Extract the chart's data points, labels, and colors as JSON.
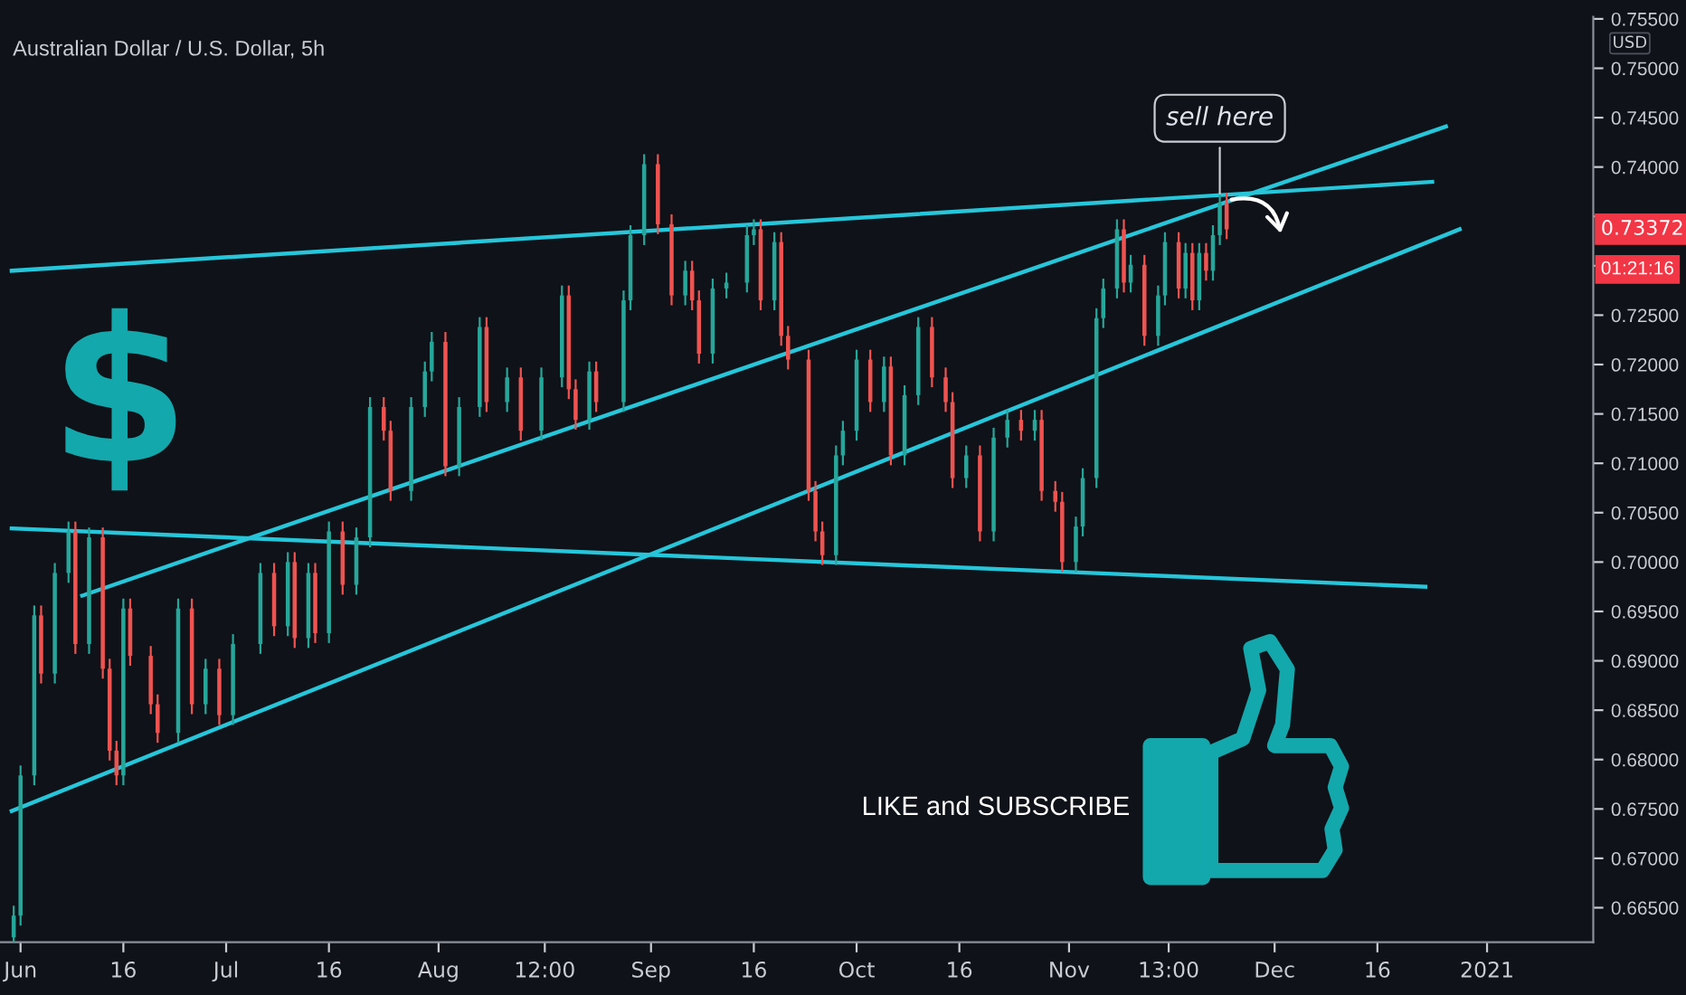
{
  "chart_data": {
    "type": "candlestick",
    "title": "Australian Dollar / U.S. Dollar, 5h",
    "ylabel": "USD",
    "x": [
      "2020-05-31",
      "2020-06-01",
      "2020-06-03",
      "2020-06-04",
      "2020-06-06",
      "2020-06-08",
      "2020-06-09",
      "2020-06-11",
      "2020-06-13",
      "2020-06-14",
      "2020-06-15",
      "2020-06-16",
      "2020-06-17",
      "2020-06-20",
      "2020-06-21",
      "2020-06-24",
      "2020-06-26",
      "2020-06-28",
      "2020-06-30",
      "2020-07-02",
      "2020-07-06",
      "2020-07-08",
      "2020-07-10",
      "2020-07-11",
      "2020-07-13",
      "2020-07-14",
      "2020-07-16",
      "2020-07-18",
      "2020-07-20",
      "2020-07-22",
      "2020-07-24",
      "2020-07-25",
      "2020-07-28",
      "2020-07-30",
      "2020-07-31",
      "2020-08-02",
      "2020-08-04",
      "2020-08-07",
      "2020-08-08",
      "2020-08-11",
      "2020-08-13",
      "2020-08-16",
      "2020-08-19",
      "2020-08-20",
      "2020-08-21",
      "2020-08-23",
      "2020-08-24",
      "2020-08-28",
      "2020-08-29",
      "2020-08-31",
      "2020-09-02",
      "2020-09-04",
      "2020-09-06",
      "2020-09-07",
      "2020-09-08",
      "2020-09-10",
      "2020-09-12",
      "2020-09-15",
      "2020-09-16",
      "2020-09-17",
      "2020-09-19",
      "2020-09-20",
      "2020-09-21",
      "2020-09-24",
      "2020-09-25",
      "2020-09-26",
      "2020-09-28",
      "2020-09-29",
      "2020-10-01",
      "2020-10-03",
      "2020-10-05",
      "2020-10-06",
      "2020-10-08",
      "2020-10-10",
      "2020-10-12",
      "2020-10-14",
      "2020-10-15",
      "2020-10-17",
      "2020-10-19",
      "2020-10-21",
      "2020-10-23",
      "2020-10-25",
      "2020-10-27",
      "2020-10-28",
      "2020-10-30",
      "2020-10-31",
      "2020-11-02",
      "2020-11-03",
      "2020-11-05",
      "2020-11-06",
      "2020-11-08",
      "2020-11-09",
      "2020-11-10",
      "2020-11-12",
      "2020-11-14",
      "2020-11-15",
      "2020-11-17",
      "2020-11-18",
      "2020-11-19",
      "2020-11-20",
      "2020-11-21",
      "2020-11-22",
      "2020-11-23",
      "2020-11-24"
    ],
    "ohlc": [
      [
        0.662,
        0.6652,
        0.661,
        0.6642
      ],
      [
        0.6642,
        0.6794,
        0.6632,
        0.6784
      ],
      [
        0.6784,
        0.6956,
        0.6774,
        0.6946
      ],
      [
        0.6946,
        0.6956,
        0.6877,
        0.6887
      ],
      [
        0.6887,
        0.6999,
        0.6877,
        0.6989
      ],
      [
        0.6989,
        0.7041,
        0.6979,
        0.7031
      ],
      [
        0.7031,
        0.7041,
        0.6907,
        0.6917
      ],
      [
        0.6917,
        0.7035,
        0.6907,
        0.7025
      ],
      [
        0.7025,
        0.7035,
        0.6882,
        0.6892
      ],
      [
        0.6892,
        0.6902,
        0.6799,
        0.6809
      ],
      [
        0.6809,
        0.6819,
        0.6774,
        0.6784
      ],
      [
        0.6784,
        0.6963,
        0.6774,
        0.6953
      ],
      [
        0.6953,
        0.6963,
        0.6895,
        0.6905
      ],
      [
        0.6905,
        0.6915,
        0.6846,
        0.6856
      ],
      [
        0.6856,
        0.6866,
        0.6817,
        0.6827
      ],
      [
        0.6827,
        0.6963,
        0.6817,
        0.6953
      ],
      [
        0.6953,
        0.6963,
        0.6846,
        0.6856
      ],
      [
        0.6856,
        0.6902,
        0.6846,
        0.6892
      ],
      [
        0.6892,
        0.6902,
        0.6835,
        0.6845
      ],
      [
        0.6845,
        0.6927,
        0.6835,
        0.6917
      ],
      [
        0.6917,
        0.6999,
        0.6907,
        0.6989
      ],
      [
        0.6989,
        0.6999,
        0.6925,
        0.6935
      ],
      [
        0.6935,
        0.701,
        0.6925,
        0.7
      ],
      [
        0.7,
        0.701,
        0.6913,
        0.6923
      ],
      [
        0.6923,
        0.6999,
        0.6913,
        0.6989
      ],
      [
        0.6989,
        0.6999,
        0.6918,
        0.6928
      ],
      [
        0.6928,
        0.7041,
        0.6918,
        0.7031
      ],
      [
        0.7031,
        0.7041,
        0.6967,
        0.6977
      ],
      [
        0.6977,
        0.7035,
        0.6967,
        0.7025
      ],
      [
        0.7025,
        0.7167,
        0.7015,
        0.7157
      ],
      [
        0.7157,
        0.7167,
        0.7123,
        0.7133
      ],
      [
        0.7133,
        0.7143,
        0.7062,
        0.7072
      ],
      [
        0.7072,
        0.7167,
        0.7062,
        0.7157
      ],
      [
        0.7157,
        0.7203,
        0.7147,
        0.7193
      ],
      [
        0.7193,
        0.7233,
        0.7183,
        0.7223
      ],
      [
        0.7223,
        0.7233,
        0.7087,
        0.7097
      ],
      [
        0.7097,
        0.7167,
        0.7087,
        0.7157
      ],
      [
        0.7157,
        0.7248,
        0.7147,
        0.7238
      ],
      [
        0.7238,
        0.7248,
        0.7152,
        0.7162
      ],
      [
        0.7162,
        0.7197,
        0.7152,
        0.7187
      ],
      [
        0.7187,
        0.7197,
        0.7123,
        0.7133
      ],
      [
        0.7133,
        0.7197,
        0.7123,
        0.7187
      ],
      [
        0.7187,
        0.728,
        0.7177,
        0.727
      ],
      [
        0.727,
        0.728,
        0.7165,
        0.7175
      ],
      [
        0.7175,
        0.7185,
        0.7134,
        0.7144
      ],
      [
        0.7144,
        0.7203,
        0.7134,
        0.7193
      ],
      [
        0.7193,
        0.7203,
        0.7152,
        0.7162
      ],
      [
        0.7162,
        0.7275,
        0.7152,
        0.7265
      ],
      [
        0.7265,
        0.7341,
        0.7255,
        0.7331
      ],
      [
        0.7331,
        0.7413,
        0.7321,
        0.7403
      ],
      [
        0.7403,
        0.7413,
        0.7332,
        0.7342
      ],
      [
        0.7342,
        0.7352,
        0.726,
        0.727
      ],
      [
        0.727,
        0.7305,
        0.726,
        0.7295
      ],
      [
        0.7295,
        0.7305,
        0.7255,
        0.7265
      ],
      [
        0.7265,
        0.7275,
        0.7201,
        0.7211
      ],
      [
        0.7211,
        0.7287,
        0.7201,
        0.7277
      ],
      [
        0.7277,
        0.7293,
        0.7267,
        0.7283
      ],
      [
        0.7283,
        0.7341,
        0.7273,
        0.7331
      ],
      [
        0.7331,
        0.7347,
        0.7321,
        0.7337
      ],
      [
        0.7337,
        0.7347,
        0.7255,
        0.7265
      ],
      [
        0.7265,
        0.7334,
        0.7255,
        0.7324
      ],
      [
        0.7324,
        0.7334,
        0.7219,
        0.7229
      ],
      [
        0.7229,
        0.7239,
        0.7195,
        0.7205
      ],
      [
        0.7205,
        0.7215,
        0.7062,
        0.7072
      ],
      [
        0.7072,
        0.7082,
        0.7021,
        0.7031
      ],
      [
        0.7031,
        0.7041,
        0.6997,
        0.7007
      ],
      [
        0.7007,
        0.7118,
        0.6997,
        0.7108
      ],
      [
        0.7108,
        0.7143,
        0.7098,
        0.7133
      ],
      [
        0.7133,
        0.7215,
        0.7123,
        0.7205
      ],
      [
        0.7205,
        0.7215,
        0.7152,
        0.7162
      ],
      [
        0.7162,
        0.7208,
        0.7152,
        0.7198
      ],
      [
        0.7198,
        0.7208,
        0.7098,
        0.7108
      ],
      [
        0.7108,
        0.7179,
        0.7098,
        0.7169
      ],
      [
        0.7169,
        0.7248,
        0.7159,
        0.7238
      ],
      [
        0.7238,
        0.7248,
        0.7177,
        0.7187
      ],
      [
        0.7187,
        0.7197,
        0.7152,
        0.7162
      ],
      [
        0.7162,
        0.7172,
        0.7075,
        0.7085
      ],
      [
        0.7085,
        0.7118,
        0.7075,
        0.7108
      ],
      [
        0.7108,
        0.7118,
        0.7021,
        0.7031
      ],
      [
        0.7031,
        0.7136,
        0.7021,
        0.7126
      ],
      [
        0.7126,
        0.7154,
        0.7116,
        0.7144
      ],
      [
        0.7144,
        0.7154,
        0.7123,
        0.7133
      ],
      [
        0.7133,
        0.7154,
        0.7123,
        0.7144
      ],
      [
        0.7144,
        0.7154,
        0.7062,
        0.7072
      ],
      [
        0.7072,
        0.7082,
        0.7051,
        0.7061
      ],
      [
        0.7061,
        0.7071,
        0.699,
        0.7
      ],
      [
        0.7,
        0.7046,
        0.699,
        0.7036
      ],
      [
        0.7036,
        0.7095,
        0.7026,
        0.7085
      ],
      [
        0.7085,
        0.7257,
        0.7075,
        0.7247
      ],
      [
        0.7247,
        0.7287,
        0.7237,
        0.7277
      ],
      [
        0.7277,
        0.7347,
        0.7267,
        0.7337
      ],
      [
        0.7337,
        0.7347,
        0.7273,
        0.7283
      ],
      [
        0.7283,
        0.7311,
        0.7273,
        0.7301
      ],
      [
        0.7301,
        0.7311,
        0.7219,
        0.7229
      ],
      [
        0.7229,
        0.728,
        0.7219,
        0.727
      ],
      [
        0.727,
        0.7334,
        0.726,
        0.7324
      ],
      [
        0.7324,
        0.7334,
        0.7267,
        0.7277
      ],
      [
        0.7277,
        0.7323,
        0.7267,
        0.7313
      ],
      [
        0.7313,
        0.7323,
        0.7255,
        0.7265
      ],
      [
        0.7265,
        0.7323,
        0.7255,
        0.7313
      ],
      [
        0.7313,
        0.7323,
        0.7285,
        0.7295
      ],
      [
        0.7295,
        0.7341,
        0.7285,
        0.7331
      ],
      [
        0.7331,
        0.7374,
        0.7321,
        0.7364
      ],
      [
        0.7364,
        0.7374,
        0.7327,
        0.7337
      ]
    ],
    "series": [
      {
        "type": "line",
        "color": "#26c6da",
        "x": [
          "2020-05-30T17:00",
          "2020-12-24"
        ],
        "values": [
          0.7295,
          0.7385
        ]
      },
      {
        "type": "line",
        "color": "#26c6da",
        "x": [
          "2020-06-10",
          "2020-12-26"
        ],
        "values": [
          0.6966,
          0.7441
        ]
      },
      {
        "type": "line",
        "color": "#26c6da",
        "x": [
          "2020-05-30T17:00",
          "2020-12-28"
        ],
        "values": [
          0.6748,
          0.7337
        ]
      },
      {
        "type": "line",
        "color": "#26c6da",
        "x": [
          "2020-05-30T17:00",
          "2020-12-23"
        ],
        "values": [
          0.7034,
          0.6975
        ]
      }
    ],
    "annotations": [
      {
        "text": "sell here",
        "x": "2020-11-23",
        "y": 0.7368
      },
      "$",
      "LIKE and SUBSCRIBE",
      "0.73372",
      "01:21:16"
    ],
    "xlim": [
      "2020-05-29T00:00",
      "2021-01-16T12:00"
    ],
    "ylim": [
      0.6615,
      0.7552
    ],
    "xticks": [
      {
        "value": "2020-06-01",
        "label": "Jun"
      },
      {
        "value": "2020-06-16",
        "label": "16"
      },
      {
        "value": "2020-07-01",
        "label": "Jul"
      },
      {
        "value": "2020-07-16",
        "label": "16"
      },
      {
        "value": "2020-08-01",
        "label": "Aug"
      },
      {
        "value": "2020-08-16T12:00",
        "label": "12:00"
      },
      {
        "value": "2020-09-01",
        "label": "Sep"
      },
      {
        "value": "2020-09-16",
        "label": "16"
      },
      {
        "value": "2020-10-01",
        "label": "Oct"
      },
      {
        "value": "2020-10-16",
        "label": "16"
      },
      {
        "value": "2020-11-01",
        "label": "Nov"
      },
      {
        "value": "2020-11-15T13:00",
        "label": "13:00"
      },
      {
        "value": "2020-12-01",
        "label": "Dec"
      },
      {
        "value": "2020-12-16",
        "label": "16"
      },
      {
        "value": "2021-01-01",
        "label": "2021"
      }
    ],
    "yticks": [
      {
        "value": 0.665,
        "label": "0.66500"
      },
      {
        "value": 0.67,
        "label": "0.67000"
      },
      {
        "value": 0.675,
        "label": "0.67500"
      },
      {
        "value": 0.68,
        "label": "0.68000"
      },
      {
        "value": 0.685,
        "label": "0.68500"
      },
      {
        "value": 0.69,
        "label": "0.69000"
      },
      {
        "value": 0.695,
        "label": "0.69500"
      },
      {
        "value": 0.7,
        "label": "0.70000"
      },
      {
        "value": 0.705,
        "label": "0.70500"
      },
      {
        "value": 0.71,
        "label": "0.71000"
      },
      {
        "value": 0.715,
        "label": "0.71500"
      },
      {
        "value": 0.72,
        "label": "0.72000"
      },
      {
        "value": 0.725,
        "label": "0.72500"
      },
      {
        "value": 0.73,
        "label": null
      },
      {
        "value": 0.735,
        "label": null
      },
      {
        "value": 0.74,
        "label": "0.74000"
      },
      {
        "value": 0.745,
        "label": "0.74500"
      },
      {
        "value": 0.75,
        "label": "0.75000"
      },
      {
        "value": 0.755,
        "label": "0.75500"
      }
    ],
    "grid": false,
    "legend": false
  }
}
